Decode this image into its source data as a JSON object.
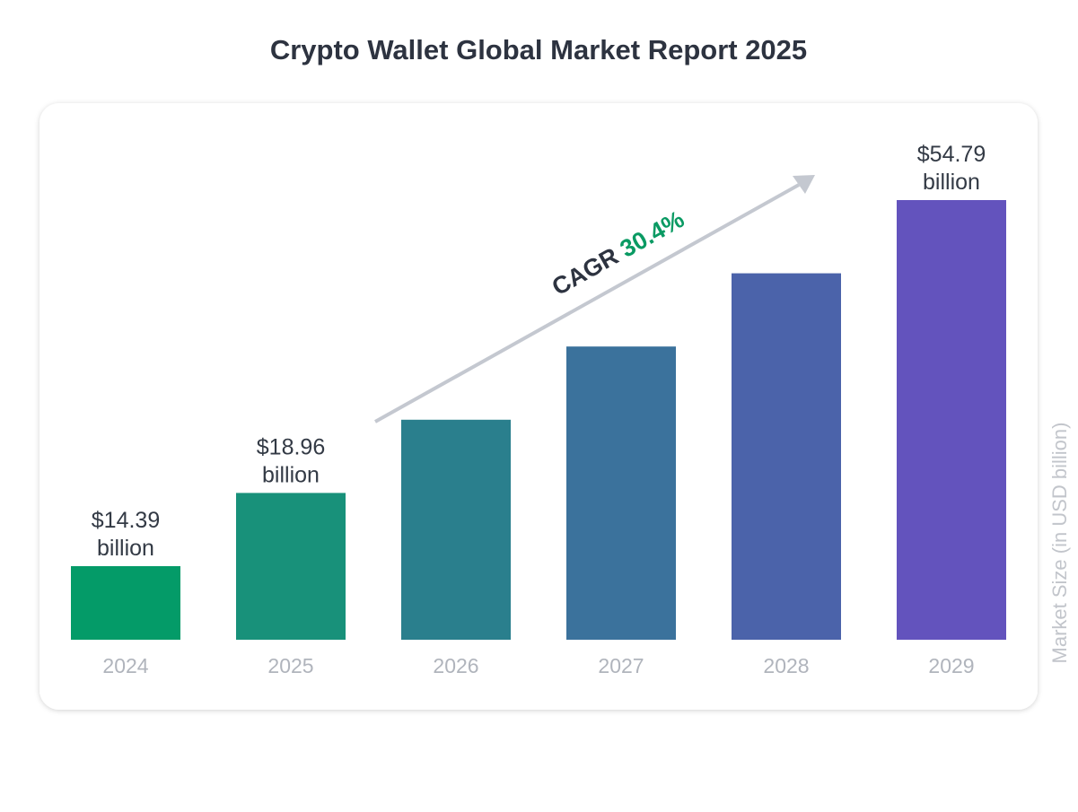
{
  "chart_data": {
    "type": "bar",
    "title": "Crypto Wallet Global Market Report 2025",
    "ylabel": "Market Size (in USD billion)",
    "categories": [
      "2024",
      "2025",
      "2026",
      "2027",
      "2028",
      "2029"
    ],
    "values": [
      14.39,
      18.96,
      24.72,
      32.24,
      42.04,
      54.79
    ],
    "value_labels": [
      [
        "$14.39",
        "billion"
      ],
      [
        "$18.96",
        "billion"
      ],
      null,
      null,
      null,
      [
        "$54.79",
        "billion"
      ]
    ],
    "colors": [
      "#049b68",
      "#18917a",
      "#2a7f8d",
      "#3b729c",
      "#4b63aa",
      "#6353bd"
    ],
    "annotation": {
      "prefix": "CAGR",
      "value": "30.4%",
      "value_color": "#0a9a63",
      "arrow_color": "#c4c8d0"
    },
    "grid": false,
    "legend": "none"
  }
}
